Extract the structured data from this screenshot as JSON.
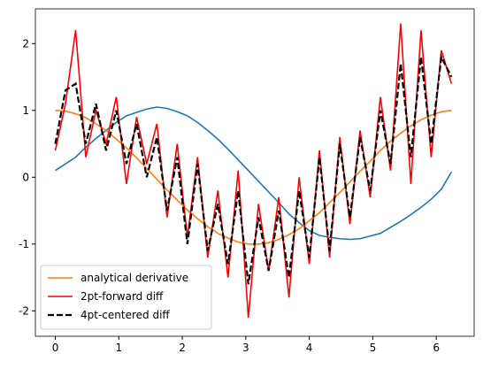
{
  "chart_data": {
    "type": "line",
    "x": [
      0,
      0.16,
      0.32,
      0.48,
      0.64,
      0.8,
      0.96,
      1.12,
      1.28,
      1.44,
      1.6,
      1.76,
      1.92,
      2.08,
      2.24,
      2.4,
      2.56,
      2.72,
      2.88,
      3.04,
      3.2,
      3.36,
      3.52,
      3.68,
      3.84,
      4.0,
      4.16,
      4.32,
      4.48,
      4.64,
      4.8,
      4.96,
      5.12,
      5.28,
      5.44,
      5.6,
      5.76,
      5.92,
      6.08,
      6.24
    ],
    "series": [
      {
        "color": "#1f77b4",
        "values": [
          0.1,
          0.2,
          0.3,
          0.45,
          0.58,
          0.7,
          0.82,
          0.92,
          0.97,
          1.02,
          1.05,
          1.03,
          0.98,
          0.92,
          0.82,
          0.7,
          0.57,
          0.42,
          0.26,
          0.1,
          -0.06,
          -0.22,
          -0.38,
          -0.55,
          -0.68,
          -0.8,
          -0.87,
          -0.9,
          -0.92,
          -0.93,
          -0.92,
          -0.88,
          -0.84,
          -0.75,
          -0.66,
          -0.56,
          -0.45,
          -0.33,
          -0.18,
          0.08
        ]
      },
      {
        "name": "analytical derivative",
        "color": "#ff7f0e",
        "values": [
          1,
          0.99,
          0.95,
          0.89,
          0.8,
          0.7,
          0.57,
          0.44,
          0.29,
          0.13,
          -0.03,
          -0.19,
          -0.34,
          -0.49,
          -0.62,
          -0.74,
          -0.84,
          -0.91,
          -0.97,
          -1.0,
          -1.0,
          -0.98,
          -0.93,
          -0.86,
          -0.77,
          -0.65,
          -0.53,
          -0.38,
          -0.23,
          -0.07,
          0.09,
          0.24,
          0.4,
          0.54,
          0.66,
          0.77,
          0.86,
          0.93,
          0.98,
          1.0
        ]
      },
      {
        "name": "2pt-forward diff",
        "color": "#ff0000",
        "values": [
          0.4,
          1.1,
          2.2,
          0.3,
          1.0,
          0.5,
          1.2,
          -0.1,
          0.9,
          0.2,
          0.8,
          -0.6,
          0.5,
          -0.9,
          0.3,
          -1.2,
          -0.2,
          -1.5,
          0.1,
          -2.1,
          -0.4,
          -1.4,
          -0.3,
          -1.8,
          0.0,
          -1.3,
          0.4,
          -1.2,
          0.6,
          -0.7,
          0.7,
          -0.3,
          1.2,
          0.1,
          2.3,
          -0.1,
          2.2,
          0.3,
          1.9,
          1.4
        ]
      },
      {
        "name": "4pt-centered diff",
        "color": "#000000",
        "linestyle": "dashed",
        "values": [
          0.5,
          1.3,
          1.4,
          0.5,
          1.1,
          0.4,
          1.0,
          0.2,
          0.8,
          0.0,
          0.6,
          -0.5,
          0.3,
          -1.0,
          0.2,
          -1.1,
          -0.4,
          -1.3,
          -0.2,
          -1.6,
          -0.6,
          -1.4,
          -0.5,
          -1.5,
          -0.2,
          -1.2,
          0.3,
          -1.1,
          0.5,
          -0.6,
          0.6,
          -0.2,
          1.0,
          0.2,
          1.7,
          0.3,
          1.8,
          0.5,
          1.8,
          1.5
        ]
      }
    ],
    "xlim": [
      -0.314,
      6.597
    ],
    "ylim": [
      -2.38,
      2.52
    ],
    "xticks": [
      0,
      1,
      2,
      3,
      4,
      5,
      6
    ],
    "yticks": [
      -2,
      -1,
      0,
      1,
      2
    ],
    "legend": "lower left"
  }
}
